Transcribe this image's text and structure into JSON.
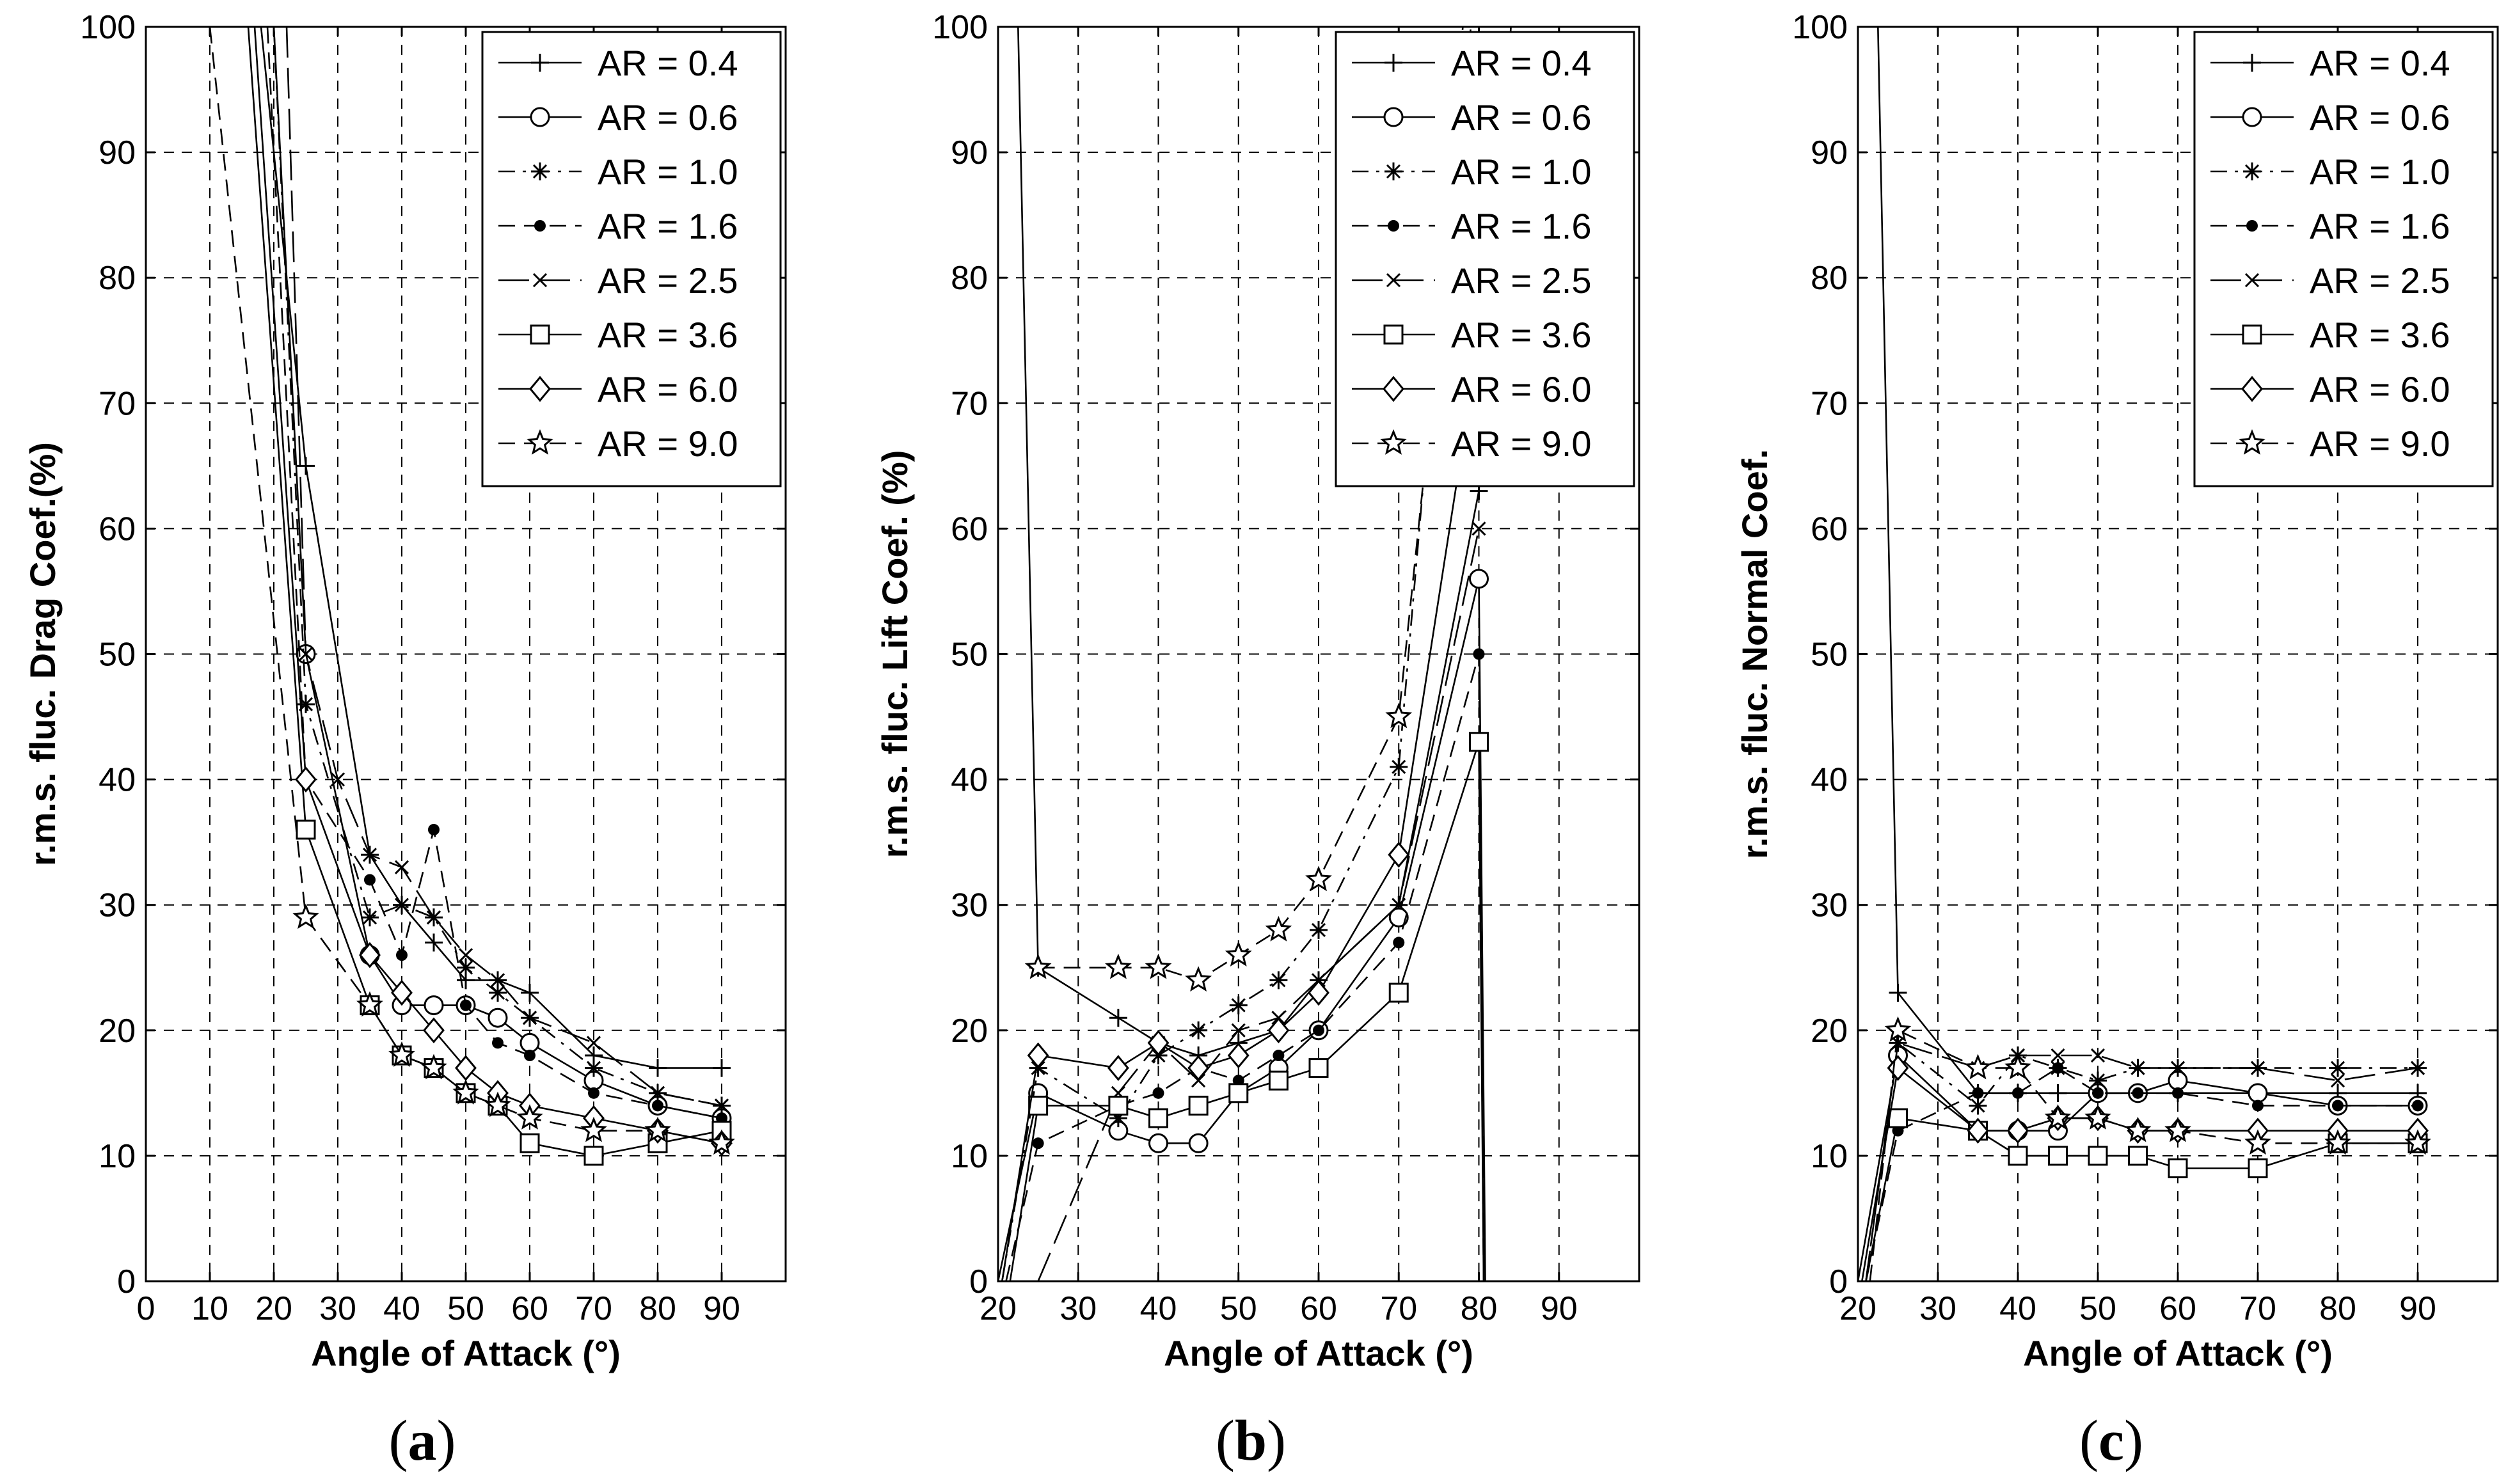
{
  "chart_data": [
    {
      "type": "line",
      "panel_label": "(a)",
      "xlabel": "Angle of Attack (°)",
      "ylabel": "r.m.s. fluc. Drag Coef.(%)",
      "xlim": [
        0,
        100
      ],
      "ylim": [
        0,
        100
      ],
      "xticks": [
        0,
        10,
        20,
        30,
        40,
        50,
        60,
        70,
        80,
        90
      ],
      "yticks": [
        0,
        10,
        20,
        30,
        40,
        50,
        60,
        70,
        80,
        90,
        100
      ],
      "grid": true,
      "legend": "top-right",
      "series": [
        {
          "name": "AR = 0.4",
          "marker": "plus",
          "dash": "solid",
          "x": [
            18,
            25,
            35,
            40,
            45,
            50,
            55,
            60,
            70,
            80,
            90
          ],
          "y": [
            100,
            65,
            34,
            30,
            27,
            24,
            24,
            23,
            18,
            17,
            17
          ]
        },
        {
          "name": "AR = 0.6",
          "marker": "circle",
          "dash": "solid",
          "x": [
            20,
            25,
            35,
            40,
            45,
            50,
            55,
            60,
            70,
            80,
            90
          ],
          "y": [
            100,
            50,
            26,
            22,
            22,
            22,
            21,
            19,
            16,
            14,
            13
          ]
        },
        {
          "name": "AR = 1.0",
          "marker": "asterisk",
          "dash": "dashdot",
          "x": [
            20,
            25,
            35,
            40,
            45,
            50,
            55,
            60,
            70,
            80,
            90
          ],
          "y": [
            100,
            46,
            29,
            30,
            29,
            25,
            23,
            21,
            17,
            15,
            14
          ]
        },
        {
          "name": "AR = 1.6",
          "marker": "dot",
          "dash": "dash",
          "x": [
            19,
            25,
            35,
            40,
            45,
            50,
            55,
            60,
            70,
            80,
            90
          ],
          "y": [
            100,
            40,
            32,
            26,
            36,
            22,
            19,
            18,
            15,
            14,
            13
          ]
        },
        {
          "name": "AR = 2.5",
          "marker": "x",
          "dash": "longdash",
          "x": [
            22,
            25,
            30,
            35,
            40,
            45,
            50,
            55,
            60,
            70,
            80,
            90
          ],
          "y": [
            100,
            50,
            40,
            34,
            33,
            29,
            26,
            24,
            21,
            19,
            15,
            14
          ]
        },
        {
          "name": "AR = 3.6",
          "marker": "square",
          "dash": "solid",
          "x": [
            16,
            25,
            35,
            40,
            45,
            50,
            55,
            60,
            70,
            80,
            90
          ],
          "y": [
            100,
            36,
            22,
            18,
            17,
            15,
            14,
            11,
            10,
            11,
            12
          ]
        },
        {
          "name": "AR = 6.0",
          "marker": "diamond",
          "dash": "solid",
          "x": [
            17,
            25,
            35,
            40,
            45,
            50,
            55,
            60,
            70,
            80,
            90
          ],
          "y": [
            100,
            40,
            26,
            23,
            20,
            17,
            15,
            14,
            13,
            12,
            11
          ]
        },
        {
          "name": "AR = 9.0",
          "marker": "star",
          "dash": "dash",
          "x": [
            10,
            25,
            35,
            40,
            45,
            50,
            55,
            60,
            70,
            80,
            90
          ],
          "y": [
            100,
            29,
            22,
            18,
            17,
            15,
            14,
            13,
            12,
            12,
            11
          ]
        }
      ]
    },
    {
      "type": "line",
      "panel_label": "(b)",
      "xlabel": "Angle of Attack (°)",
      "ylabel": "r.m.s. fluc. Lift Coef. (%)",
      "xlim": [
        20,
        100
      ],
      "ylim": [
        0,
        100
      ],
      "xticks": [
        20,
        30,
        40,
        50,
        60,
        70,
        80,
        90
      ],
      "yticks": [
        0,
        10,
        20,
        30,
        40,
        50,
        60,
        70,
        80,
        90,
        100
      ],
      "grid": true,
      "legend": "top-right",
      "series": [
        {
          "name": "AR = 0.4",
          "marker": "plus",
          "dash": "solid",
          "x": [
            22.5,
            25,
            35,
            40,
            45,
            50,
            55,
            60,
            70,
            80,
            84
          ],
          "y": [
            100,
            25,
            21,
            19,
            18,
            19,
            20,
            24,
            30,
            63,
            100
          ]
        },
        {
          "name": "AR = 0.6",
          "marker": "circle",
          "dash": "solid",
          "x": [
            20,
            25,
            35,
            40,
            45,
            50,
            55,
            60,
            70,
            80,
            80.8
          ],
          "y": [
            0,
            15,
            12,
            11,
            11,
            15,
            17,
            20,
            29,
            56,
            0
          ]
        },
        {
          "name": "AR = 1.0",
          "marker": "asterisk",
          "dash": "dashdot",
          "x": [
            20.5,
            25,
            35,
            40,
            45,
            50,
            55,
            60,
            70,
            78
          ],
          "y": [
            0,
            17,
            13,
            18,
            20,
            22,
            24,
            28,
            41,
            100
          ]
        },
        {
          "name": "AR = 1.6",
          "marker": "dot",
          "dash": "dash",
          "x": [
            21,
            25,
            35,
            40,
            45,
            50,
            55,
            60,
            70,
            80,
            80.6
          ],
          "y": [
            0,
            11,
            14,
            15,
            17,
            16,
            18,
            20,
            27,
            50,
            0
          ]
        },
        {
          "name": "AR = 2.5",
          "marker": "x",
          "dash": "longdash",
          "x": [
            25,
            35,
            40,
            45,
            50,
            55,
            60,
            70,
            80
          ],
          "y": [
            0,
            15,
            19,
            16,
            20,
            21,
            24,
            30,
            60
          ]
        },
        {
          "name": "AR = 3.6",
          "marker": "square",
          "dash": "solid",
          "x": [
            21.5,
            25,
            35,
            40,
            45,
            50,
            55,
            60,
            70,
            80,
            80.6
          ],
          "y": [
            0,
            14,
            14,
            13,
            14,
            15,
            16,
            17,
            23,
            43,
            0
          ]
        },
        {
          "name": "AR = 6.0",
          "marker": "diamond",
          "dash": "solid",
          "x": [
            20.5,
            25,
            35,
            40,
            45,
            50,
            55,
            60,
            70,
            80
          ],
          "y": [
            0,
            18,
            17,
            19,
            17,
            18,
            20,
            23,
            34,
            75
          ]
        },
        {
          "name": "AR = 9.0",
          "marker": "star",
          "dash": "dash",
          "x": [
            25,
            35,
            40,
            45,
            50,
            55,
            60,
            70,
            79
          ],
          "y": [
            25,
            25,
            25,
            24,
            26,
            28,
            32,
            45,
            100
          ]
        }
      ]
    },
    {
      "type": "line",
      "panel_label": "(c)",
      "xlabel": "Angle of Attack (°)",
      "ylabel": "r.m.s. fluc. Normal Coef.",
      "xlim": [
        20,
        100
      ],
      "ylim": [
        0,
        100
      ],
      "xticks": [
        20,
        30,
        40,
        50,
        60,
        70,
        80,
        90
      ],
      "yticks": [
        0,
        10,
        20,
        30,
        40,
        50,
        60,
        70,
        80,
        90,
        100
      ],
      "grid": true,
      "legend": "top-right",
      "series": [
        {
          "name": "AR = 0.4",
          "marker": "plus",
          "dash": "solid",
          "x": [
            22.5,
            25,
            35,
            40,
            45,
            50,
            55,
            60,
            70,
            80,
            90
          ],
          "y": [
            100,
            23,
            15,
            15,
            15,
            15,
            15,
            15,
            15,
            15,
            15
          ]
        },
        {
          "name": "AR = 0.6",
          "marker": "circle",
          "dash": "solid",
          "x": [
            20,
            25,
            35,
            40,
            45,
            50,
            55,
            60,
            70,
            80,
            90
          ],
          "y": [
            0,
            18,
            12,
            12,
            12,
            15,
            15,
            16,
            15,
            14,
            14
          ]
        },
        {
          "name": "AR = 1.0",
          "marker": "asterisk",
          "dash": "dashdot",
          "x": [
            21,
            25,
            35,
            40,
            45,
            50,
            55,
            60,
            70,
            80,
            90
          ],
          "y": [
            0,
            19,
            14,
            18,
            17,
            16,
            17,
            17,
            17,
            17,
            17
          ]
        },
        {
          "name": "AR = 1.6",
          "marker": "dot",
          "dash": "dash",
          "x": [
            21,
            25,
            35,
            40,
            45,
            50,
            55,
            60,
            70,
            80,
            90
          ],
          "y": [
            0,
            12,
            15,
            15,
            17,
            15,
            15,
            15,
            14,
            14,
            14
          ]
        },
        {
          "name": "AR = 2.5",
          "marker": "x",
          "dash": "longdash",
          "x": [
            21,
            25,
            35,
            40,
            45,
            50,
            55,
            60,
            70,
            80,
            90
          ],
          "y": [
            0,
            19,
            17,
            18,
            18,
            18,
            17,
            17,
            17,
            16,
            17
          ]
        },
        {
          "name": "AR = 3.6",
          "marker": "square",
          "dash": "solid",
          "x": [
            21,
            25,
            35,
            40,
            45,
            50,
            55,
            60,
            70,
            80,
            90
          ],
          "y": [
            0,
            13,
            12,
            10,
            10,
            10,
            10,
            9,
            9,
            11,
            11
          ]
        },
        {
          "name": "AR = 6.0",
          "marker": "diamond",
          "dash": "solid",
          "x": [
            20.5,
            25,
            35,
            40,
            45,
            50,
            55,
            60,
            70,
            80,
            90
          ],
          "y": [
            0,
            17,
            12,
            12,
            13,
            13,
            12,
            12,
            12,
            12,
            12
          ]
        },
        {
          "name": "AR = 9.0",
          "marker": "star",
          "dash": "dash",
          "x": [
            21.5,
            25,
            35,
            40,
            45,
            50,
            55,
            60,
            70,
            80,
            90
          ],
          "y": [
            0,
            20,
            17,
            17,
            13,
            13,
            12,
            12,
            11,
            11,
            11
          ]
        }
      ]
    }
  ]
}
